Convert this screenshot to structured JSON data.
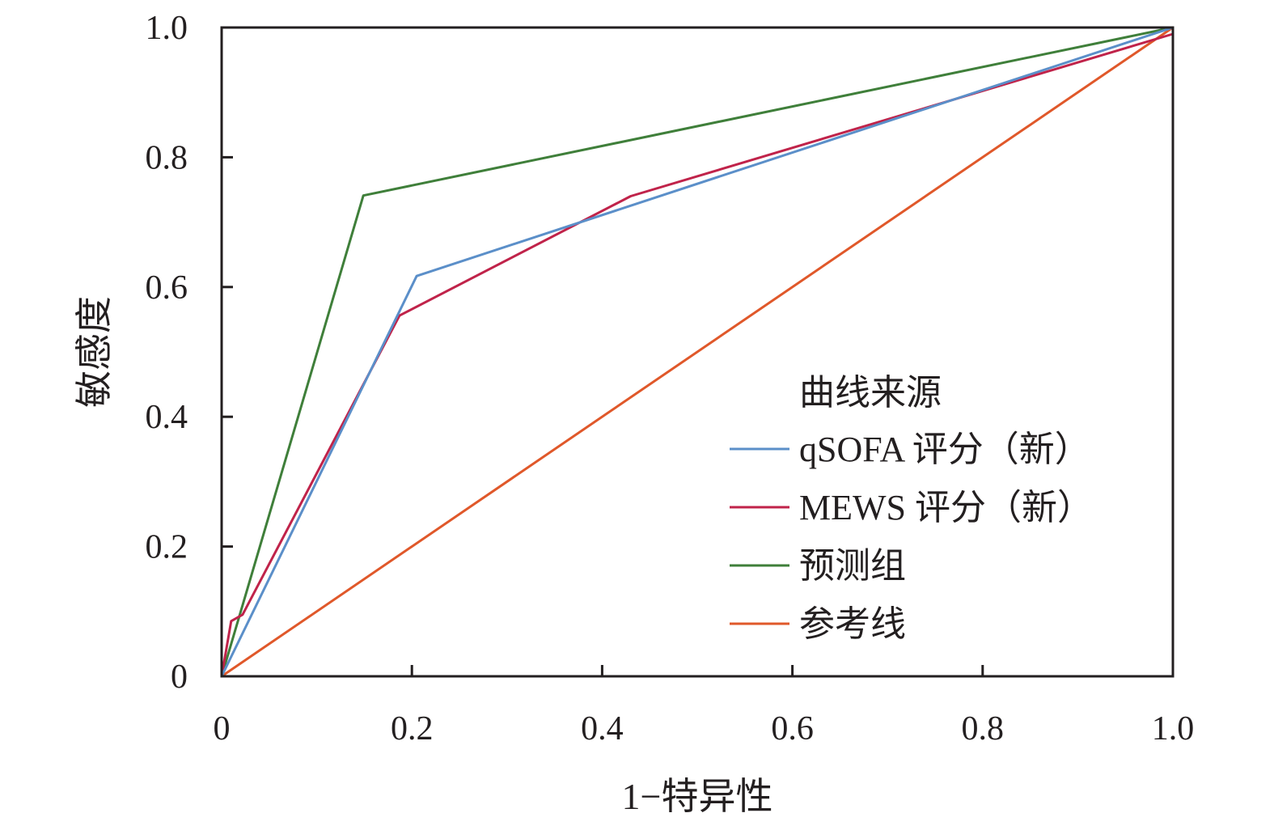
{
  "chart_data": {
    "type": "line",
    "xlabel": "1−特异性",
    "ylabel": "敏感度",
    "xlim": [
      0,
      1.0
    ],
    "ylim": [
      0,
      1.0
    ],
    "x_ticks": [
      {
        "value": 0,
        "label": "0"
      },
      {
        "value": 0.2,
        "label": "0.2"
      },
      {
        "value": 0.4,
        "label": "0.4"
      },
      {
        "value": 0.6,
        "label": "0.6"
      },
      {
        "value": 0.8,
        "label": "0.8"
      },
      {
        "value": 1.0,
        "label": "1.0"
      }
    ],
    "y_ticks": [
      {
        "value": 0,
        "label": "0"
      },
      {
        "value": 0.2,
        "label": "0.2"
      },
      {
        "value": 0.4,
        "label": "0.4"
      },
      {
        "value": 0.6,
        "label": "0.6"
      },
      {
        "value": 0.8,
        "label": "0.8"
      },
      {
        "value": 1.0,
        "label": "1.0"
      }
    ],
    "grid": false,
    "legend": {
      "title": "曲线来源",
      "placement": "bottom-right"
    },
    "series": [
      {
        "name": "qSOFA 评分（新）",
        "color": "#5b8fc9",
        "points": [
          [
            0,
            0
          ],
          [
            0.205,
            0.617
          ],
          [
            1.0,
            1.0
          ]
        ]
      },
      {
        "name": "MEWS 评分（新）",
        "color": "#c0234a",
        "points": [
          [
            0,
            0
          ],
          [
            0.01,
            0.085
          ],
          [
            0.022,
            0.095
          ],
          [
            0.187,
            0.556
          ],
          [
            0.43,
            0.74
          ],
          [
            1.0,
            0.99
          ],
          [
            1.0,
            1.0
          ]
        ]
      },
      {
        "name": "预测组",
        "color": "#3f7f3a",
        "points": [
          [
            0,
            0
          ],
          [
            0.149,
            0.741
          ],
          [
            1.0,
            1.0
          ]
        ]
      },
      {
        "name": "参考线",
        "color": "#e0582a",
        "points": [
          [
            0,
            0
          ],
          [
            1.0,
            1.0
          ]
        ]
      }
    ]
  }
}
